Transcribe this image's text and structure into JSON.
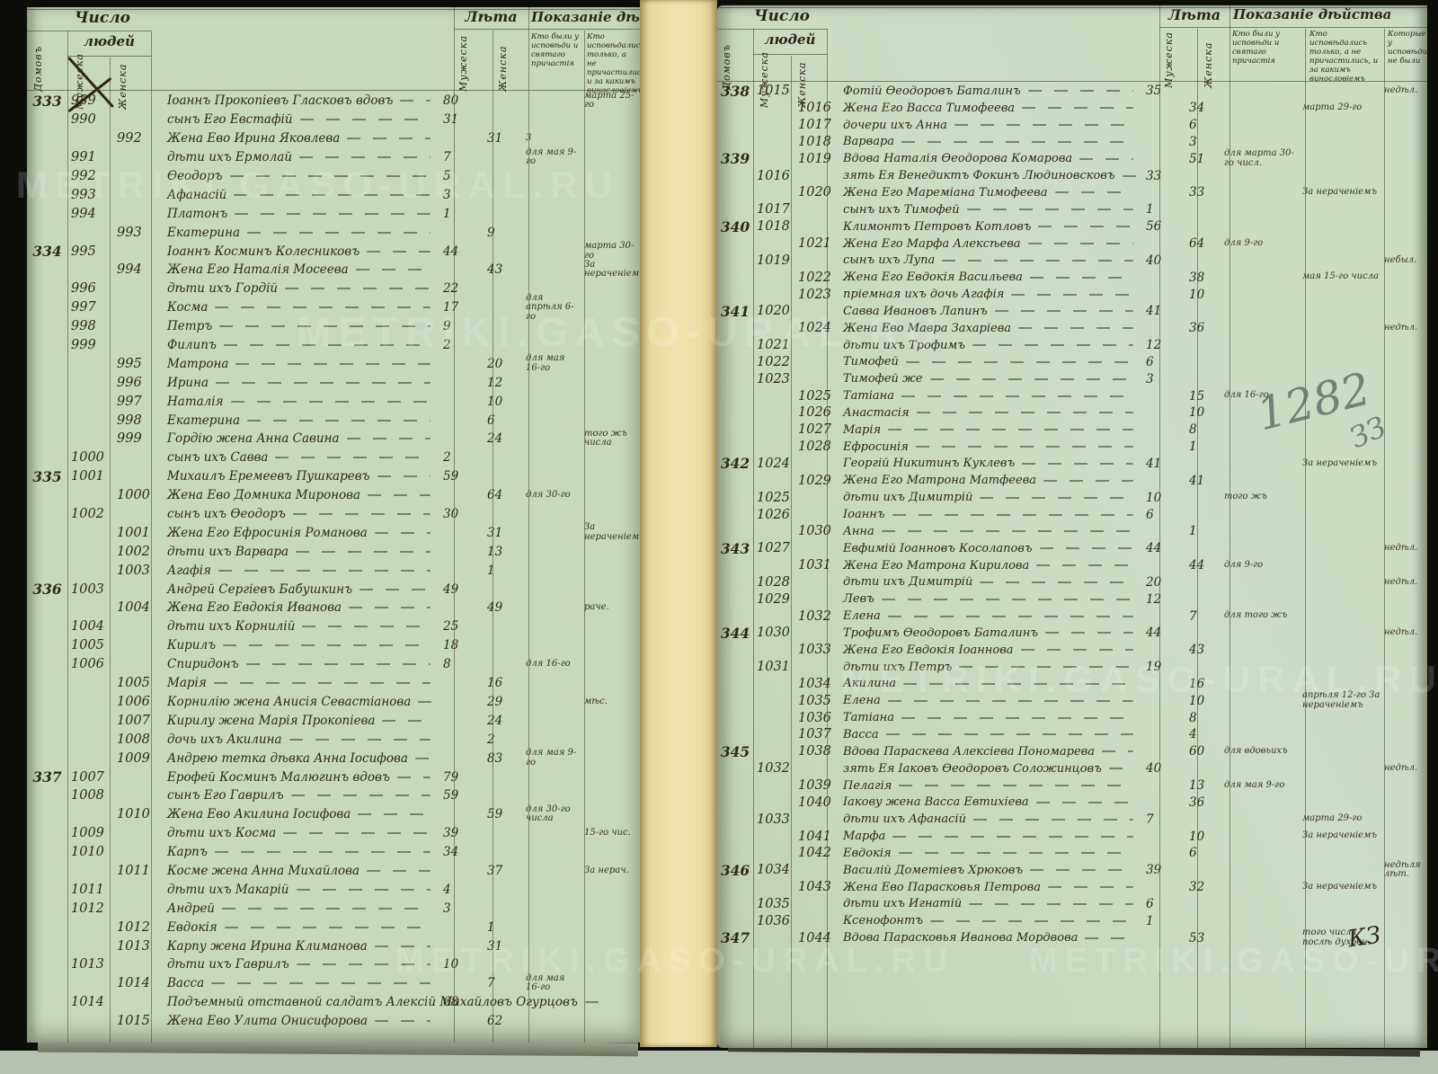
{
  "watermark": {
    "text": "METRIKI.GASO-URAL.RU"
  },
  "marks": {
    "pencil_number": "1282",
    "pencil_flourish": "ЗЗ",
    "ink_initials": "КЗ"
  },
  "pages": [
    {
      "side": "left",
      "header": {
        "chislo": "Число",
        "lyudey": "людей",
        "domov": "Домовъ",
        "muzh": "Мужеска",
        "zhen": "Женска",
        "leta": "Лѣта",
        "pokaz": "Показаніе дѣйства",
        "sub1": "Кто были у исповѣди и святаго причастія",
        "sub2": "Кто исповѣдались только, а не причастились, и за какимъ винословіемъ"
      },
      "rows": [
        {
          "house": "333",
          "m": "989",
          "name": "Іоаннъ Прокопіевъ Гласковъ вдовъ",
          "am": "80",
          "nb": "марта 25-го"
        },
        {
          "m": "990",
          "name": "сынъ Его Евстафій",
          "am": "31"
        },
        {
          "f": "992",
          "name": "Жена Ево Ирина Яковлева",
          "af": "31",
          "na": "3"
        },
        {
          "m": "991",
          "name": "дѣти ихъ Ермолай",
          "am": "7",
          "na": "для мая 9-го"
        },
        {
          "m": "992",
          "name": "Ѳеодоръ",
          "am": "5"
        },
        {
          "m": "993",
          "name": "Афанасій",
          "am": "3"
        },
        {
          "m": "994",
          "name": "Платонъ",
          "am": "1"
        },
        {
          "f": "993",
          "name": "Екатерина",
          "af": "9"
        },
        {
          "house": "334",
          "m": "995",
          "name": "Іоаннъ Косминъ Колесниковъ",
          "am": "44",
          "nb": "марта 30-го"
        },
        {
          "f": "994",
          "name": "Жена Его Наталія Мосеева",
          "af": "43",
          "nb": "За нераченіемъ"
        },
        {
          "m": "996",
          "name": "дѣти ихъ Гордій",
          "am": "22"
        },
        {
          "m": "997",
          "name": "Косма",
          "am": "17",
          "na": "для апрѣля 6-го"
        },
        {
          "m": "998",
          "name": "Петръ",
          "am": "9"
        },
        {
          "m": "999",
          "name": "Филипъ",
          "am": "2"
        },
        {
          "f": "995",
          "name": "Матрона",
          "af": "20",
          "na": "для мая 16-го"
        },
        {
          "f": "996",
          "name": "Ирина",
          "af": "12"
        },
        {
          "f": "997",
          "name": "Наталія",
          "af": "10"
        },
        {
          "f": "998",
          "name": "Екатерина",
          "af": "6"
        },
        {
          "f": "999",
          "name": "Гордію жена Анна Савина",
          "af": "24",
          "nb": "того жъ числа"
        },
        {
          "m": "1000",
          "name": "сынъ ихъ Савва",
          "am": "2"
        },
        {
          "house": "335",
          "m": "1001",
          "name": "Михаилъ Еремеевъ Пушкаревъ",
          "am": "59"
        },
        {
          "f": "1000",
          "name": "Жена Ево Домника Миронова",
          "af": "64",
          "na": "для 30-го"
        },
        {
          "m": "1002",
          "name": "сынъ ихъ Ѳеодоръ",
          "am": "30"
        },
        {
          "f": "1001",
          "name": "Жена Его Ефросинія Романова",
          "af": "31",
          "nb": "За нераченіемъ"
        },
        {
          "f": "1002",
          "name": "дѣти ихъ Варвара",
          "af": "13"
        },
        {
          "f": "1003",
          "name": "Агафія",
          "af": "1"
        },
        {
          "house": "336",
          "m": "1003",
          "name": "Андрей Сергіевъ Бабушкинъ",
          "am": "49"
        },
        {
          "f": "1004",
          "name": "Жена Его Евдокія Иванова",
          "af": "49",
          "nb": "раче."
        },
        {
          "m": "1004",
          "name": "дѣти ихъ Корнилій",
          "am": "25"
        },
        {
          "m": "1005",
          "name": "Кирилъ",
          "am": "18"
        },
        {
          "m": "1006",
          "name": "Спиридонъ",
          "am": "8",
          "na": "для 16-го"
        },
        {
          "f": "1005",
          "name": "Марія",
          "af": "16"
        },
        {
          "f": "1006",
          "name": "Корнилію жена Анисія Севастіанова",
          "af": "29",
          "nb": "мѣс."
        },
        {
          "f": "1007",
          "name": "Кирилу жена Марія Прокопіева",
          "af": "24"
        },
        {
          "f": "1008",
          "name": "дочь ихъ Акилина",
          "af": "2"
        },
        {
          "f": "1009",
          "name": "Андрею тетка дѣвка Анна Іосифова",
          "af": "83",
          "na": "для мая 9-го"
        },
        {
          "house": "337",
          "m": "1007",
          "name": "Ерофей Косминъ Малюгинъ вдовъ",
          "am": "79"
        },
        {
          "m": "1008",
          "name": "сынъ Его Гаврилъ",
          "am": "59"
        },
        {
          "f": "1010",
          "name": "Жена Ево Акилина Іосифова",
          "af": "59",
          "na": "для 30-го числа"
        },
        {
          "m": "1009",
          "name": "дѣти ихъ Косма",
          "am": "39",
          "nb": "15-го чис."
        },
        {
          "m": "1010",
          "name": "Карпъ",
          "am": "34"
        },
        {
          "f": "1011",
          "name": "Косме жена Анна Михайлова",
          "af": "37",
          "nb": "За нерач."
        },
        {
          "m": "1011",
          "name": "дѣти ихъ Макарій",
          "am": "4"
        },
        {
          "m": "1012",
          "name": "Андрей",
          "am": "3"
        },
        {
          "f": "1012",
          "name": "Евдокія",
          "af": "1"
        },
        {
          "f": "1013",
          "name": "Карпу жена Ирина Климанова",
          "af": "31"
        },
        {
          "m": "1013",
          "name": "дѣти ихъ Гаврилъ",
          "am": "10"
        },
        {
          "f": "1014",
          "name": "Васса",
          "af": "7",
          "na": "для мая 16-го"
        },
        {
          "m": "1014",
          "name": "Подъемный отставной салдатъ Алексій Михайловъ Огурцовъ",
          "am": "68"
        },
        {
          "f": "1015",
          "name": "Жена Ево Улита Онисифорова",
          "af": "62"
        }
      ]
    },
    {
      "side": "right",
      "header": {
        "chislo": "Число",
        "lyudey": "людей",
        "domov": "Домовъ",
        "muzh": "Мужеска",
        "zhen": "Женска",
        "leta": "Лѣта",
        "pokaz": "Показаніе дѣйства",
        "sub1": "Кто были у исповѣди и святаго причастія",
        "sub2": "Кто исповѣдались только, а не причастились, и за какимъ винословіемъ",
        "sub3": "Которые у исповѣди не были"
      },
      "rows": [
        {
          "house": "338",
          "m": "1015",
          "name": "Фотій Ѳеодоровъ Баталинъ",
          "am": "35",
          "nc": "недѣл."
        },
        {
          "f": "1016",
          "name": "Жена Его Васса Тимофеева",
          "af": "34",
          "nb": "марта 29-го"
        },
        {
          "f": "1017",
          "name": "дочери ихъ Анна",
          "af": "6"
        },
        {
          "f": "1018",
          "name": "Варвара",
          "af": "3"
        },
        {
          "house": "339",
          "f": "1019",
          "name": "Вдова Наталія Ѳеодорова Комарова",
          "af": "51",
          "na": "для марта 30-го числ."
        },
        {
          "m": "1016",
          "name": "зять Ея Венедиктъ Фокинъ Людиновсковъ",
          "am": "33"
        },
        {
          "f": "1020",
          "name": "Жена Его Мареміана Тимофеева",
          "af": "33",
          "nb": "За нераченіемъ"
        },
        {
          "m": "1017",
          "name": "сынъ ихъ Тимофей",
          "am": "1"
        },
        {
          "house": "340",
          "m": "1018",
          "name": "Климонтъ Петровъ Котловъ",
          "am": "56"
        },
        {
          "f": "1021",
          "name": "Жена Его Марфа Алексѣева",
          "af": "64",
          "na": "для 9-го"
        },
        {
          "m": "1019",
          "name": "сынъ ихъ Лупа",
          "am": "40",
          "nc": "небыл."
        },
        {
          "f": "1022",
          "name": "Жена Его Евдокія Васильева",
          "af": "38",
          "nb": "мая 15-го числа"
        },
        {
          "f": "1023",
          "name": "пріемная ихъ дочь Агафія",
          "af": "10"
        },
        {
          "house": "341",
          "m": "1020",
          "name": "Савва Ивановъ Лапинъ",
          "am": "41"
        },
        {
          "f": "1024",
          "name": "Жена Ево Мавра Захаріева",
          "af": "36",
          "nc": "недѣл."
        },
        {
          "m": "1021",
          "name": "дѣти ихъ Трофимъ",
          "am": "12"
        },
        {
          "m": "1022",
          "name": "Тимофей",
          "am": "6"
        },
        {
          "m": "1023",
          "name": "Тимофей же",
          "am": "3"
        },
        {
          "f": "1025",
          "name": "Татіана",
          "af": "15",
          "na": "для 16-го"
        },
        {
          "f": "1026",
          "name": "Анастасія",
          "af": "10"
        },
        {
          "f": "1027",
          "name": "Марія",
          "af": "8"
        },
        {
          "f": "1028",
          "name": "Ефросинія",
          "af": "1"
        },
        {
          "house": "342",
          "m": "1024",
          "name": "Георгій Никитинъ Куклевъ",
          "am": "41",
          "nb": "За нераченіемъ"
        },
        {
          "f": "1029",
          "name": "Жена Его Матрона Матфеева",
          "af": "41"
        },
        {
          "m": "1025",
          "name": "дѣти ихъ Димитрій",
          "am": "10",
          "na": "того жъ"
        },
        {
          "m": "1026",
          "name": "Іоаннъ",
          "am": "6"
        },
        {
          "f": "1030",
          "name": "Анна",
          "af": "1"
        },
        {
          "house": "343",
          "m": "1027",
          "name": "Евфимій Іоанновъ Косолаповъ",
          "am": "44",
          "nc": "недѣл."
        },
        {
          "f": "1031",
          "name": "Жена Его Матрона Кирилова",
          "af": "44",
          "na": "для 9-го"
        },
        {
          "m": "1028",
          "name": "дѣти ихъ Димитрій",
          "am": "20",
          "nc": "недѣл."
        },
        {
          "m": "1029",
          "name": "Левъ",
          "am": "12"
        },
        {
          "f": "1032",
          "name": "Елена",
          "af": "7",
          "na": "для того жъ"
        },
        {
          "house": "344",
          "m": "1030",
          "name": "Трофимъ Ѳеодоровъ Баталинъ",
          "am": "44",
          "nc": "недѣл."
        },
        {
          "f": "1033",
          "name": "Жена Его Евдокія Іоаннова",
          "af": "43"
        },
        {
          "m": "1031",
          "name": "дѣти ихъ Петръ",
          "am": "19"
        },
        {
          "f": "1034",
          "name": "Акилина",
          "af": "16"
        },
        {
          "f": "1035",
          "name": "Елена",
          "af": "10",
          "nb": "апрѣля 12-го За нераченіемъ"
        },
        {
          "f": "1036",
          "name": "Татіана",
          "af": "8"
        },
        {
          "f": "1037",
          "name": "Васса",
          "af": "4"
        },
        {
          "house": "345",
          "f": "1038",
          "name": "Вдова Параскева Алексіева Пономарева",
          "af": "60",
          "na": "для вдовьихъ"
        },
        {
          "m": "1032",
          "name": "зять Ея Іаковъ Ѳеодоровъ Соложинцовъ",
          "am": "40",
          "nc": "недѣл."
        },
        {
          "f": "1039",
          "name": "Пелагія",
          "af": "13",
          "na": "для мая 9-го"
        },
        {
          "f": "1040",
          "name": "Іакову жена Васса Евтихіева",
          "af": "36"
        },
        {
          "m": "1033",
          "name": "дѣти ихъ Афанасій",
          "am": "7",
          "nb": "марта 29-го"
        },
        {
          "f": "1041",
          "name": "Марфа",
          "af": "10",
          "nb": "За нераченіемъ"
        },
        {
          "f": "1042",
          "name": "Евдокія",
          "af": "6"
        },
        {
          "house": "346",
          "m": "1034",
          "name": "Василій Дометіевъ Хрюковъ",
          "am": "39",
          "nc": "недѣля лѣт."
        },
        {
          "f": "1043",
          "name": "Жена Ево Парасковья Петрова",
          "af": "32",
          "nb": "За нераченіемъ"
        },
        {
          "m": "1035",
          "name": "дѣти ихъ Игнатій",
          "am": "6"
        },
        {
          "m": "1036",
          "name": "Ксенофонтъ",
          "am": "1"
        },
        {
          "house": "347",
          "f": "1044",
          "name": "Вдова Парасковья Иванова Мордвова",
          "af": "53",
          "nb": "того числа послѣ духовн."
        }
      ]
    }
  ]
}
